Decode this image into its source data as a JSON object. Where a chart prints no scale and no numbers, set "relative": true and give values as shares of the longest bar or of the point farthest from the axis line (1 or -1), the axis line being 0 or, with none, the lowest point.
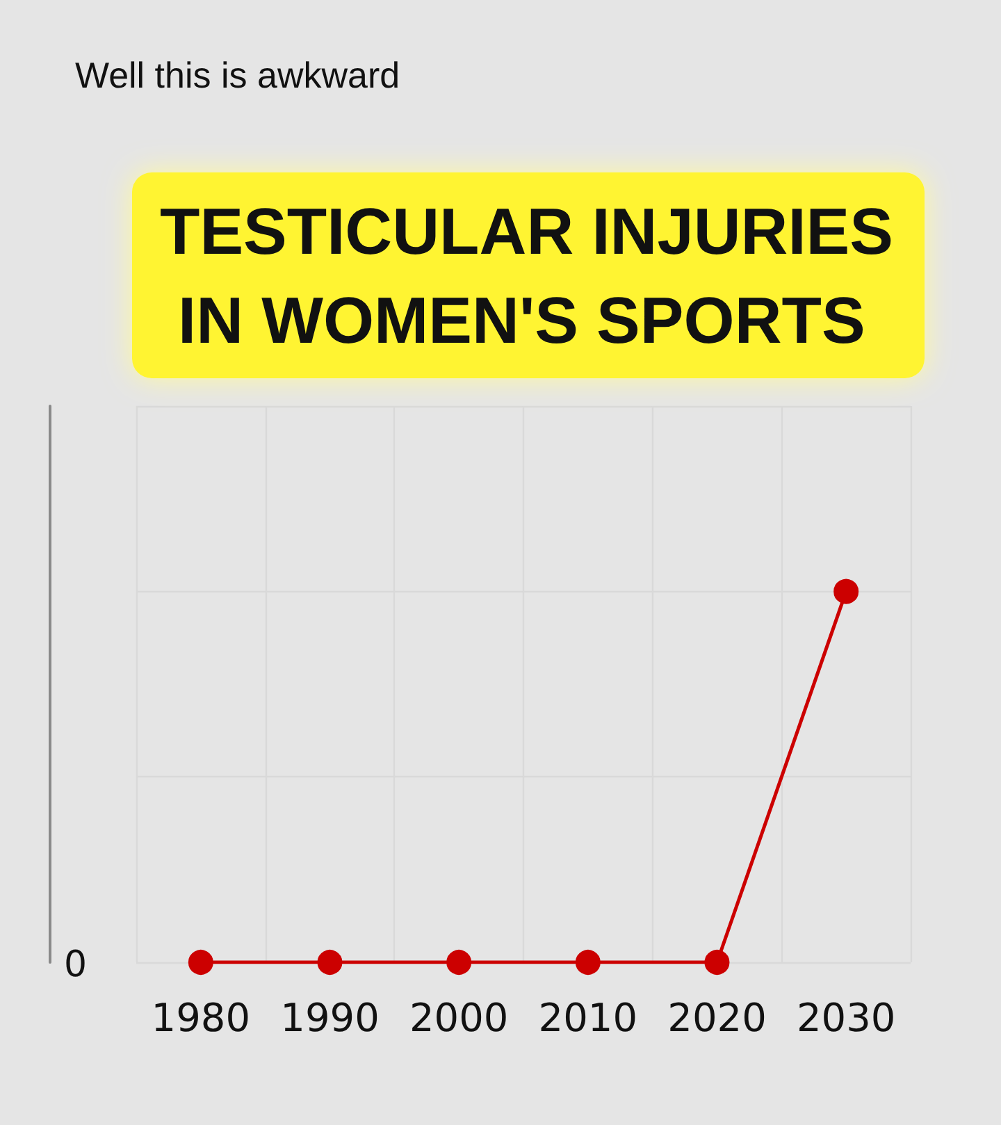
{
  "chart_data": {
    "type": "line",
    "title": "TESTICULAR INJURIES IN WOMEN'S SPORTS",
    "annotations": [
      "Well this is awkward",
      "0"
    ],
    "categories": [
      "1980",
      "1990",
      "2000",
      "2010",
      "2020",
      "2030"
    ],
    "series": [
      {
        "color": "#cc0000",
        "values": [
          0,
          0,
          0,
          0,
          0,
          1
        ]
      }
    ],
    "relative": true,
    "grid": true,
    "marker": "circle",
    "line_style": "solid"
  }
}
